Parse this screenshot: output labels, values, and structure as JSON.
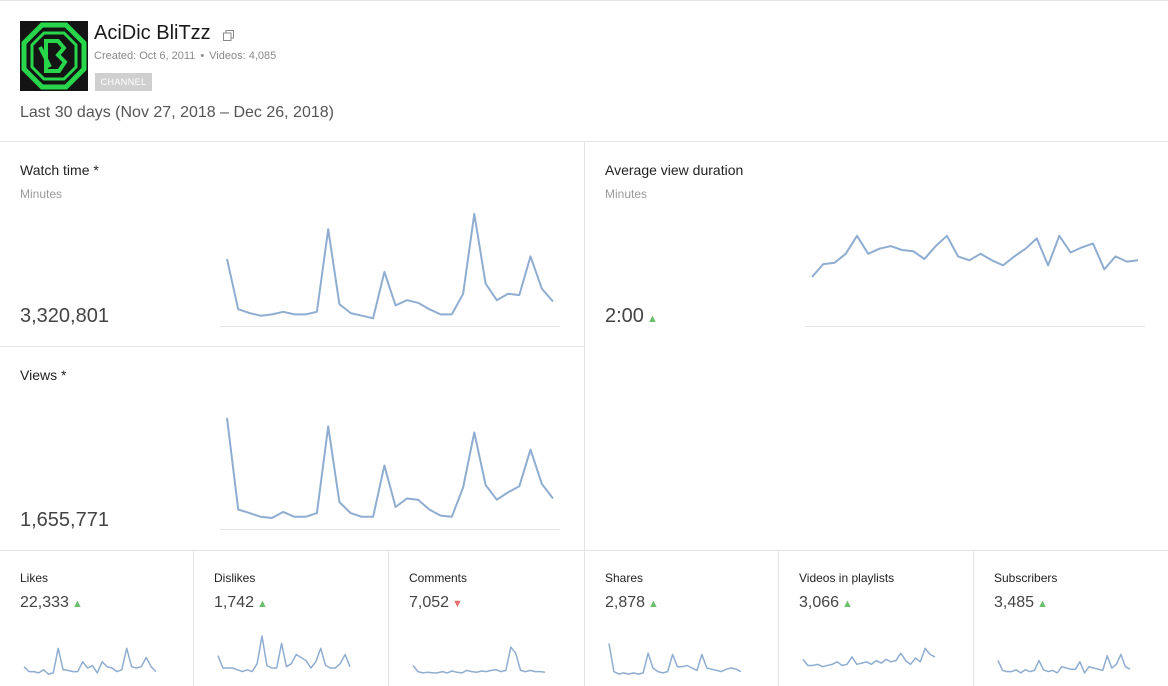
{
  "header": {
    "channel_name": "AciDic BliTzz",
    "created": "Created: Oct 6, 2011",
    "videos": "Videos: 4,085",
    "tag": "CHANNEL",
    "date_range": "Last 30 days (Nov 27, 2018 – Dec 26, 2018)",
    "dot": "•"
  },
  "colors": {
    "line": "#8fadd1",
    "up": "#6ac06a",
    "down": "#e57070",
    "baseline": "#e6e6e6"
  },
  "metrics": {
    "watch_time": {
      "title": "Watch time *",
      "unit": "Minutes",
      "value": "3,320,801",
      "trend": [
        52,
        13,
        10,
        8,
        9,
        11,
        9,
        9,
        11,
        75,
        17,
        10,
        8,
        6,
        42,
        16,
        20,
        18,
        13,
        9,
        9,
        25,
        87,
        33,
        20,
        25,
        24,
        54,
        29,
        19
      ]
    },
    "avg_view_duration": {
      "title": "Average view duration",
      "unit": "Minutes",
      "value": "2:00",
      "trend_direction": "up",
      "trend": [
        38,
        48,
        49,
        56,
        70,
        56,
        60,
        62,
        59,
        58,
        52,
        62,
        70,
        54,
        51,
        56,
        51,
        47,
        54,
        60,
        68,
        47,
        70,
        57,
        61,
        64,
        44,
        54,
        50,
        51
      ]
    },
    "views": {
      "title": "Views *",
      "unit": "",
      "value": "1,655,771",
      "trend": [
        91,
        16,
        13,
        10,
        9,
        14,
        10,
        10,
        13,
        84,
        22,
        13,
        10,
        10,
        52,
        18,
        25,
        24,
        16,
        11,
        10,
        34,
        79,
        36,
        24,
        30,
        35,
        65,
        37,
        25
      ]
    }
  },
  "small_metrics": [
    {
      "id": "likes",
      "title": "Likes",
      "value": "22,333",
      "trend_direction": "up",
      "trend": [
        20,
        12,
        12,
        10,
        15,
        8,
        10,
        50,
        15,
        14,
        12,
        12,
        28,
        18,
        22,
        10,
        28,
        20,
        18,
        12,
        15,
        50,
        20,
        18,
        20,
        35,
        20,
        12
      ]
    },
    {
      "id": "dislikes",
      "title": "Dislikes",
      "value": "1,742",
      "trend_direction": "up",
      "trend": [
        38,
        18,
        18,
        18,
        15,
        12,
        15,
        12,
        25,
        70,
        22,
        18,
        18,
        58,
        20,
        25,
        40,
        35,
        30,
        18,
        28,
        50,
        22,
        18,
        18,
        25,
        40,
        20
      ]
    },
    {
      "id": "comments",
      "title": "Comments",
      "value": "7,052",
      "trend_direction": "down",
      "trend": [
        22,
        12,
        10,
        11,
        10,
        10,
        12,
        10,
        13,
        11,
        10,
        14,
        12,
        11,
        13,
        12,
        14,
        15,
        12,
        14,
        52,
        42,
        14,
        12,
        14,
        12,
        12,
        11
      ]
    },
    {
      "id": "shares",
      "title": "Shares",
      "value": "2,878",
      "trend_direction": "up",
      "trend": [
        58,
        12,
        8,
        10,
        8,
        10,
        8,
        10,
        42,
        18,
        12,
        10,
        12,
        40,
        20,
        20,
        22,
        18,
        14,
        40,
        18,
        16,
        14,
        12,
        16,
        18,
        16,
        12
      ]
    },
    {
      "id": "videos_in_playlists",
      "title": "Videos in playlists",
      "value": "3,066",
      "trend_direction": "up",
      "trend": [
        32,
        22,
        22,
        24,
        20,
        22,
        24,
        28,
        22,
        24,
        36,
        24,
        26,
        28,
        24,
        30,
        26,
        32,
        28,
        30,
        42,
        30,
        24,
        34,
        28,
        50,
        40,
        36
      ]
    },
    {
      "id": "subscribers",
      "title": "Subscribers",
      "value": "3,485",
      "trend_direction": "up",
      "trend": [
        30,
        14,
        12,
        12,
        15,
        10,
        15,
        12,
        14,
        30,
        15,
        12,
        14,
        10,
        20,
        18,
        16,
        16,
        28,
        10,
        20,
        18,
        16,
        14,
        38,
        18,
        24,
        40,
        20,
        16
      ]
    }
  ]
}
